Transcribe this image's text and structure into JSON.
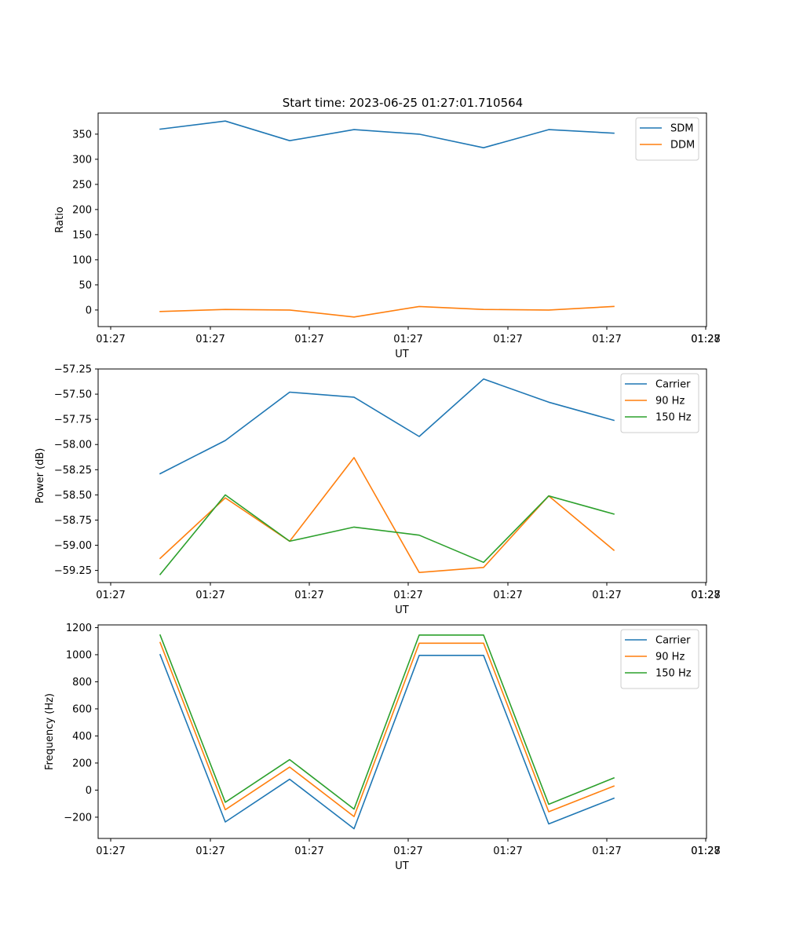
{
  "figure": {
    "suptitle": "Start time: 2023-06-25 01:27:01.710564"
  },
  "chart_data": [
    {
      "type": "line",
      "title": "",
      "xlabel": "UT",
      "ylabel": "Ratio",
      "x_ticks": [
        "01:27",
        "01:27",
        "01:27",
        "01:27",
        "01:27",
        "01:27",
        "01:27",
        "01:28"
      ],
      "ylim": [
        -33,
        392
      ],
      "y_ticks": [
        0,
        50,
        100,
        150,
        200,
        250,
        300,
        350
      ],
      "grid": false,
      "legend": "top-right",
      "series": [
        {
          "name": "SDM",
          "color": "#1f77b4",
          "values": [
            360,
            376,
            337,
            359,
            350,
            323,
            359,
            352
          ]
        },
        {
          "name": "DDM",
          "color": "#ff7f0e",
          "values": [
            -3,
            1,
            0,
            -14,
            7,
            1,
            0,
            7
          ]
        }
      ]
    },
    {
      "type": "line",
      "title": "",
      "xlabel": "UT",
      "ylabel": "Power (dB)",
      "x_ticks": [
        "01:27",
        "01:27",
        "01:27",
        "01:27",
        "01:27",
        "01:27",
        "01:27",
        "01:28"
      ],
      "ylim": [
        -59.37,
        -57.25
      ],
      "y_ticks": [
        -57.25,
        -57.5,
        -57.75,
        -58.0,
        -58.25,
        -58.5,
        -58.75,
        -59.0,
        -59.25
      ],
      "y_tick_labels": [
        "−57.25",
        "−57.50",
        "−57.75",
        "−58.00",
        "−58.25",
        "−58.50",
        "−58.75",
        "−59.00",
        "−59.25"
      ],
      "grid": false,
      "legend": "top-right",
      "series": [
        {
          "name": "Carrier",
          "color": "#1f77b4",
          "values": [
            -58.29,
            -57.96,
            -57.48,
            -57.53,
            -57.92,
            -57.35,
            -57.58,
            -57.76
          ]
        },
        {
          "name": "90 Hz",
          "color": "#ff7f0e",
          "values": [
            -59.13,
            -58.53,
            -58.96,
            -58.13,
            -59.27,
            -59.22,
            -58.51,
            -59.05
          ]
        },
        {
          "name": "150 Hz",
          "color": "#2ca02c",
          "values": [
            -59.29,
            -58.5,
            -58.96,
            -58.82,
            -58.9,
            -59.17,
            -58.51,
            -58.69
          ]
        }
      ]
    },
    {
      "type": "line",
      "title": "",
      "xlabel": "UT",
      "ylabel": "Frequency (Hz)",
      "x_ticks": [
        "01:27",
        "01:27",
        "01:27",
        "01:27",
        "01:27",
        "01:27",
        "01:27",
        "01:28"
      ],
      "ylim": [
        -357,
        1220
      ],
      "y_ticks": [
        -200,
        0,
        200,
        400,
        600,
        800,
        1000,
        1200
      ],
      "y_tick_labels": [
        "−200",
        "0",
        "200",
        "400",
        "600",
        "800",
        "1000",
        "1200"
      ],
      "grid": false,
      "legend": "top-right",
      "series": [
        {
          "name": "Carrier",
          "color": "#1f77b4",
          "values": [
            1000,
            -235,
            80,
            -285,
            995,
            995,
            -250,
            -60
          ]
        },
        {
          "name": "90 Hz",
          "color": "#ff7f0e",
          "values": [
            1090,
            -145,
            170,
            -195,
            1085,
            1085,
            -160,
            30
          ]
        },
        {
          "name": "150 Hz",
          "color": "#2ca02c",
          "values": [
            1145,
            -90,
            225,
            -140,
            1145,
            1145,
            -105,
            90
          ]
        }
      ]
    }
  ]
}
